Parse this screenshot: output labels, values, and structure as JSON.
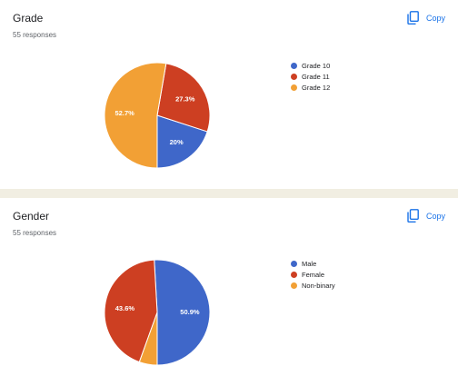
{
  "charts": [
    {
      "title": "Grade",
      "responses": "55 responses",
      "copy_label": "Copy"
    },
    {
      "title": "Gender",
      "responses": "55 responses",
      "copy_label": "Copy"
    }
  ],
  "colors": {
    "blue": "#3f67c9",
    "red": "#cd3f22",
    "orange": "#f2a035",
    "accent": "#1a73e8"
  },
  "chart_data": [
    {
      "type": "pie",
      "title": "Grade",
      "categories": [
        "Grade 10",
        "Grade 11",
        "Grade 12"
      ],
      "values": [
        20,
        27.3,
        52.7
      ],
      "labels": [
        "20%",
        "27.3%",
        "52.7%"
      ],
      "colors": [
        "#3f67c9",
        "#cd3f22",
        "#f2a035"
      ],
      "legend": "right"
    },
    {
      "type": "pie",
      "title": "Gender",
      "categories": [
        "Male",
        "Female",
        "Non-binary"
      ],
      "values": [
        50.9,
        43.6,
        5.5
      ],
      "labels": [
        "50.9%",
        "43.6%",
        ""
      ],
      "colors": [
        "#3f67c9",
        "#cd3f22",
        "#f2a035"
      ],
      "legend": "right"
    }
  ]
}
